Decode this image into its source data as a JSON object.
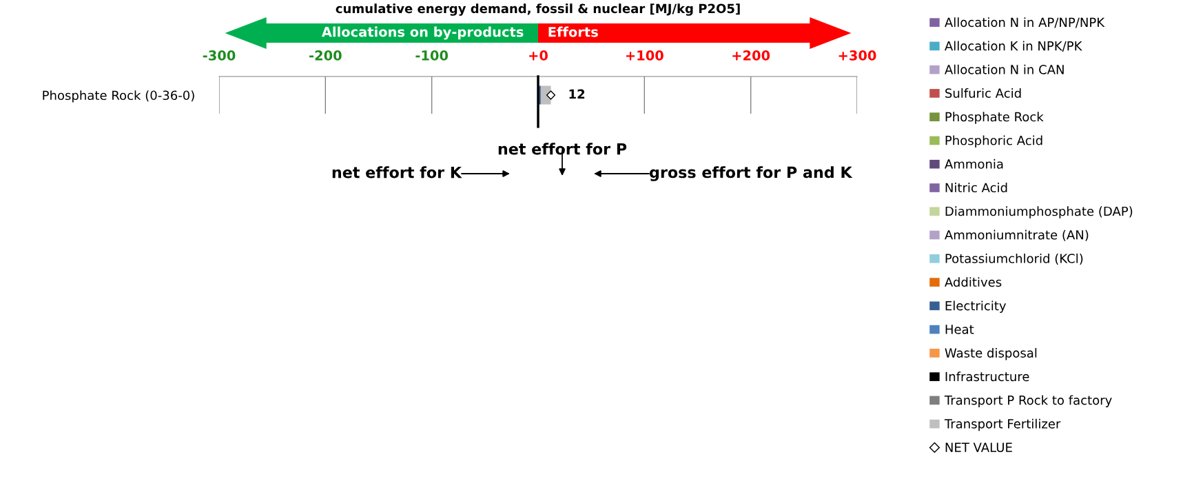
{
  "chart_data": {
    "type": "bar",
    "orientation": "horizontal",
    "stacked": true,
    "title": "cumulative energy demand, fossil & nuclear [MJ/kg P2O5]",
    "categories": [
      "Phosphate Rock (0-36-0)"
    ],
    "series": [
      {
        "name": "Allocation N in AP/NP/NPK",
        "color": "#8064a2",
        "values": [
          0
        ]
      },
      {
        "name": "Allocation K in NPK/PK",
        "color": "#4bacc6",
        "values": [
          0
        ]
      },
      {
        "name": "Allocation N in CAN",
        "color": "#b3a2c7",
        "values": [
          0
        ]
      },
      {
        "name": "Sulfuric Acid",
        "color": "#c0504d",
        "values": [
          0
        ]
      },
      {
        "name": "Phosphate Rock",
        "color": "#77933c",
        "values": [
          0
        ]
      },
      {
        "name": "Phosphoric Acid",
        "color": "#9bbb59",
        "values": [
          0
        ]
      },
      {
        "name": "Ammonia",
        "color": "#604a7b",
        "values": [
          0
        ]
      },
      {
        "name": "Nitric Acid",
        "color": "#8064a2",
        "values": [
          0
        ]
      },
      {
        "name": "Diammoniumphosphate (DAP)",
        "color": "#c3d69b",
        "values": [
          0
        ]
      },
      {
        "name": "Ammoniumnitrate (AN)",
        "color": "#b3a2c7",
        "values": [
          0
        ]
      },
      {
        "name": "Potassiumchlorid (KCl)",
        "color": "#92cddc",
        "values": [
          0
        ]
      },
      {
        "name": "Additives",
        "color": "#e46c0a",
        "values": [
          0
        ]
      },
      {
        "name": "Electricity",
        "color": "#376092",
        "values": [
          2.5
        ]
      },
      {
        "name": "Heat",
        "color": "#4f81bd",
        "values": [
          0
        ]
      },
      {
        "name": "Waste disposal",
        "color": "#f79646",
        "values": [
          0
        ]
      },
      {
        "name": "Infrastructure",
        "color": "#000000",
        "values": [
          0
        ]
      },
      {
        "name": "Transport P Rock to factory",
        "color": "#7f7f7f",
        "values": [
          0
        ]
      },
      {
        "name": "Transport Fertilizer",
        "color": "#bfbfbf",
        "values": [
          9.5
        ]
      },
      {
        "name": "NET VALUE",
        "type": "scatter",
        "marker": "diamond",
        "color": "#000000",
        "values": [
          12
        ],
        "value_labels": [
          "12"
        ]
      }
    ],
    "xlim": [
      -300,
      300
    ],
    "xticks": [
      {
        "value": -300,
        "label": "-300"
      },
      {
        "value": -200,
        "label": "-200"
      },
      {
        "value": -100,
        "label": "-100"
      },
      {
        "value": 0,
        "label": "+0"
      },
      {
        "value": 100,
        "label": "+100"
      },
      {
        "value": 200,
        "label": "+200"
      },
      {
        "value": 300,
        "label": "+300"
      }
    ],
    "grid": "x",
    "legend": "right",
    "ref_lines": [
      {
        "axis": "x",
        "value": 0,
        "color": "#000000"
      }
    ],
    "annotations": [
      "Allocations on by-products",
      "Efforts",
      "net effort for K",
      "net effort for P",
      "gross effort for P and K"
    ]
  }
}
